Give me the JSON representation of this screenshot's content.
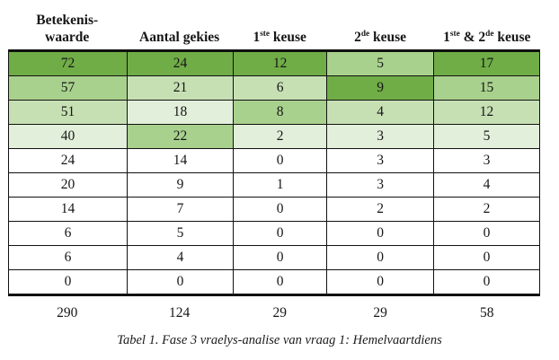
{
  "table": {
    "headers": [
      {
        "name": "betekeniswaarde",
        "lines": [
          "Betekenis-",
          "waarde"
        ]
      },
      {
        "name": "aantal-gekies",
        "lines": [
          "Aantal gekies"
        ]
      },
      {
        "name": "eerste-keuse",
        "parts": [
          [
            "t",
            "1"
          ],
          [
            "sup",
            "ste"
          ],
          [
            "t",
            " keuse"
          ]
        ]
      },
      {
        "name": "tweede-keuse",
        "parts": [
          [
            "t",
            "2"
          ],
          [
            "sup",
            "de"
          ],
          [
            "t",
            " keuse"
          ]
        ]
      },
      {
        "name": "eerste-en-tweede-keuse",
        "parts": [
          [
            "t",
            "1"
          ],
          [
            "sup",
            "ste"
          ],
          [
            "t",
            " & 2"
          ],
          [
            "sup",
            "de"
          ],
          [
            "t",
            " keuse"
          ]
        ]
      }
    ],
    "rows": [
      {
        "values": [
          72,
          24,
          12,
          5,
          17
        ],
        "shades": [
          1,
          1,
          1,
          2,
          1
        ]
      },
      {
        "values": [
          57,
          21,
          6,
          9,
          15
        ],
        "shades": [
          2,
          3,
          3,
          1,
          2
        ]
      },
      {
        "values": [
          51,
          18,
          8,
          4,
          12
        ],
        "shades": [
          3,
          4,
          2,
          3,
          3
        ]
      },
      {
        "values": [
          40,
          22,
          2,
          3,
          5
        ],
        "shades": [
          4,
          2,
          4,
          4,
          4
        ]
      },
      {
        "values": [
          24,
          14,
          0,
          3,
          3
        ],
        "shades": [
          0,
          0,
          0,
          0,
          0
        ]
      },
      {
        "values": [
          20,
          9,
          1,
          3,
          4
        ],
        "shades": [
          0,
          0,
          0,
          0,
          0
        ]
      },
      {
        "values": [
          14,
          7,
          0,
          2,
          2
        ],
        "shades": [
          0,
          0,
          0,
          0,
          0
        ]
      },
      {
        "values": [
          6,
          5,
          0,
          0,
          0
        ],
        "shades": [
          0,
          0,
          0,
          0,
          0
        ]
      },
      {
        "values": [
          6,
          4,
          0,
          0,
          0
        ],
        "shades": [
          0,
          0,
          0,
          0,
          0
        ]
      },
      {
        "values": [
          0,
          0,
          0,
          0,
          0
        ],
        "shades": [
          0,
          0,
          0,
          0,
          0
        ]
      }
    ],
    "totals": [
      "290",
      "124",
      "29",
      "29",
      "58"
    ],
    "shade_palette": {
      "0": "#FFFFFF",
      "1": "#70AD47",
      "2": "#A9D18E",
      "3": "#C6E0B4",
      "4": "#E2EFDA"
    },
    "border_color": "#111111"
  },
  "caption": {
    "text": "Tabel 1. Fase 3 vraelys-analise van vraag 1: Hemelvaartdiens"
  }
}
